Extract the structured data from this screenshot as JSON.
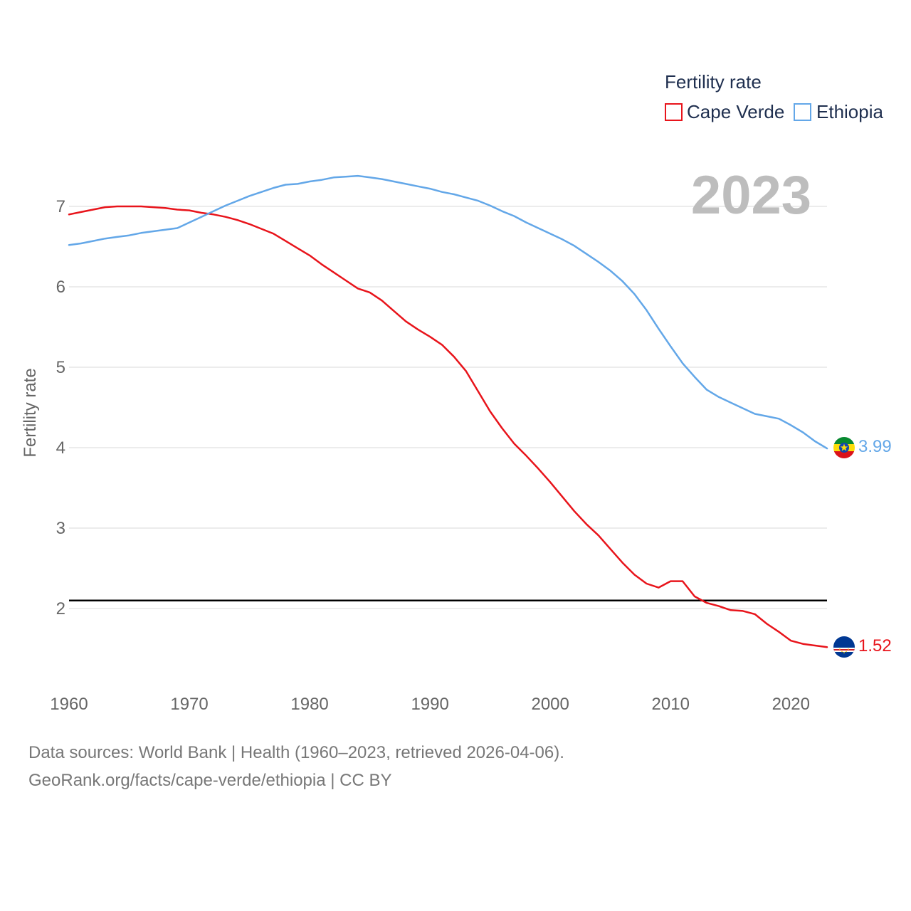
{
  "colors": {
    "cape_verde": "#e8141b",
    "ethiopia": "#63a7e8",
    "grid": "#e6e6e6",
    "reference_line": "#000000",
    "tick_text": "#666666",
    "year_text": "#bdbdbd",
    "legend_text": "#1f2f4f",
    "source_text": "#777777"
  },
  "chart_data": {
    "type": "line",
    "title": "",
    "xlabel": "",
    "ylabel": "Fertility rate",
    "xlim": [
      1960,
      2023
    ],
    "ylim": [
      1.0,
      7.8
    ],
    "x_ticks": [
      1960,
      1970,
      1980,
      1990,
      2000,
      2010,
      2020
    ],
    "y_ticks": [
      2,
      3,
      4,
      5,
      6,
      7
    ],
    "grid": true,
    "reference_line": {
      "y": 2.1,
      "label": ""
    },
    "year_label": "2023",
    "legend": {
      "title": "Fertility rate",
      "placement": "top-right"
    },
    "x": [
      1960,
      1961,
      1962,
      1963,
      1964,
      1965,
      1966,
      1967,
      1968,
      1969,
      1970,
      1971,
      1972,
      1973,
      1974,
      1975,
      1976,
      1977,
      1978,
      1979,
      1980,
      1981,
      1982,
      1983,
      1984,
      1985,
      1986,
      1987,
      1988,
      1989,
      1990,
      1991,
      1992,
      1993,
      1994,
      1995,
      1996,
      1997,
      1998,
      1999,
      2000,
      2001,
      2002,
      2003,
      2004,
      2005,
      2006,
      2007,
      2008,
      2009,
      2010,
      2011,
      2012,
      2013,
      2014,
      2015,
      2016,
      2017,
      2018,
      2019,
      2020,
      2021,
      2022,
      2023
    ],
    "series": [
      {
        "name": "Cape Verde",
        "color_key": "cape_verde",
        "end_value": "1.52",
        "flag": "cape-verde-flag-icon",
        "values": [
          6.9,
          6.93,
          6.96,
          6.99,
          7.0,
          7.0,
          7.0,
          6.99,
          6.98,
          6.96,
          6.95,
          6.92,
          6.9,
          6.87,
          6.83,
          6.78,
          6.72,
          6.66,
          6.57,
          6.48,
          6.39,
          6.28,
          6.18,
          6.08,
          5.98,
          5.93,
          5.83,
          5.7,
          5.57,
          5.47,
          5.38,
          5.28,
          5.13,
          4.95,
          4.7,
          4.45,
          4.24,
          4.05,
          3.9,
          3.74,
          3.57,
          3.39,
          3.21,
          3.05,
          2.91,
          2.74,
          2.57,
          2.42,
          2.31,
          2.26,
          2.34,
          2.34,
          2.15,
          2.07,
          2.03,
          1.98,
          1.97,
          1.93,
          1.81,
          1.71,
          1.6,
          1.56,
          1.54,
          1.52
        ]
      },
      {
        "name": "Ethiopia",
        "color_key": "ethiopia",
        "end_value": "3.99",
        "flag": "ethiopia-flag-icon",
        "values": [
          6.52,
          6.54,
          6.57,
          6.6,
          6.62,
          6.64,
          6.67,
          6.69,
          6.71,
          6.73,
          6.8,
          6.87,
          6.94,
          7.01,
          7.07,
          7.13,
          7.18,
          7.23,
          7.27,
          7.28,
          7.31,
          7.33,
          7.36,
          7.37,
          7.38,
          7.36,
          7.34,
          7.31,
          7.28,
          7.25,
          7.22,
          7.18,
          7.15,
          7.11,
          7.07,
          7.01,
          6.94,
          6.88,
          6.8,
          6.73,
          6.66,
          6.59,
          6.51,
          6.41,
          6.31,
          6.2,
          6.07,
          5.91,
          5.71,
          5.48,
          5.26,
          5.05,
          4.88,
          4.72,
          4.63,
          4.56,
          4.49,
          4.42,
          4.39,
          4.36,
          4.28,
          4.19,
          4.08,
          3.99
        ]
      }
    ]
  },
  "footer": {
    "source_line": "Data sources: World Bank | Health (1960–2023, retrieved 2026-04-06).",
    "credit_line": "GeoRank.org/facts/cape-verde/ethiopia | CC BY"
  }
}
